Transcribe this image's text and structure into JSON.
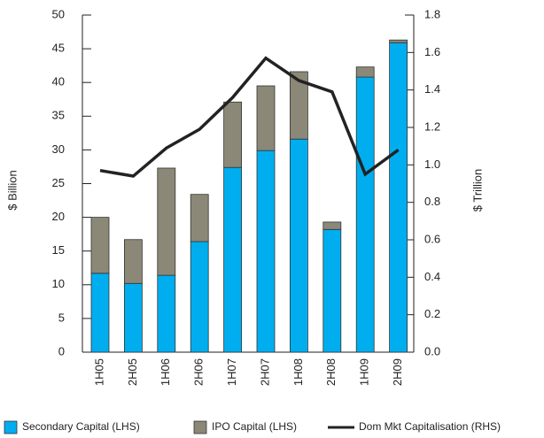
{
  "chart_data": {
    "type": "bar",
    "categories": [
      "1H05",
      "2H05",
      "1H06",
      "2H06",
      "1H07",
      "2H07",
      "1H08",
      "2H08",
      "1H09",
      "2H09"
    ],
    "series": [
      {
        "name": "Secondary Capital (LHS)",
        "color": "#00aeef",
        "stack": true,
        "values": [
          11.7,
          10.2,
          11.4,
          16.4,
          27.4,
          29.9,
          31.6,
          18.2,
          40.8,
          45.9
        ]
      },
      {
        "name": "IPO Capital (LHS)",
        "color": "#8c8877",
        "stack": true,
        "values": [
          8.3,
          6.5,
          15.9,
          7.0,
          9.7,
          9.6,
          10.0,
          1.1,
          1.5,
          0.4
        ]
      },
      {
        "name": "Dom Mkt Capitalisation (RHS)",
        "color": "#222222",
        "type": "line",
        "axis": "y2",
        "values": [
          0.97,
          0.94,
          1.09,
          1.19,
          1.36,
          1.57,
          1.45,
          1.39,
          0.95,
          1.08
        ]
      }
    ],
    "y_label": "$ Billion",
    "y2_label": "$ Trillion",
    "ylim": [
      0,
      50
    ],
    "yticks": [
      0,
      5,
      10,
      15,
      20,
      25,
      30,
      35,
      40,
      45,
      50
    ],
    "y2lim": [
      0,
      1.8
    ],
    "y2ticks": [
      {
        "value": 0,
        "label": "0.0"
      },
      0.2,
      0.4,
      0.6,
      0.8,
      {
        "value": 1,
        "label": "1.0"
      },
      1.2,
      1.4,
      1.6,
      1.8
    ]
  }
}
